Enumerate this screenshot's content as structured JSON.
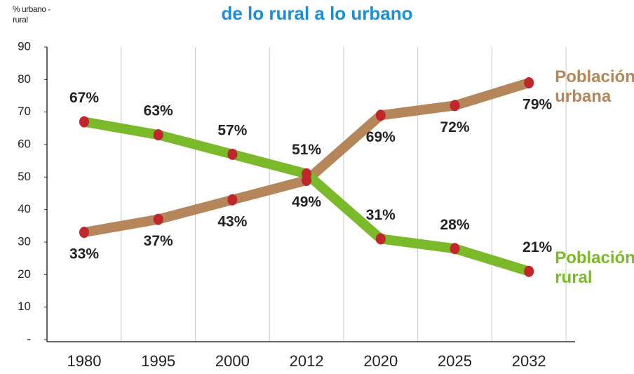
{
  "chart_data": {
    "type": "line",
    "title": "de lo rural a lo urbano",
    "y_label": "% urbano - rural",
    "categories": [
      "1980",
      "1995",
      "2000",
      "2012",
      "2020",
      "2025",
      "2032"
    ],
    "ylim": [
      0,
      90
    ],
    "yticks": [
      {
        "value": 0,
        "label": "-"
      },
      10,
      20,
      30,
      40,
      50,
      60,
      70,
      80,
      90
    ],
    "marker_color": "#c0272d",
    "series": [
      {
        "name": "Población urbana",
        "color": "#b5865a",
        "values": [
          33,
          37,
          43,
          49,
          69,
          72,
          79
        ],
        "value_labels": [
          "33%",
          "37%",
          "43%",
          "49%",
          "69%",
          "72%",
          "79%"
        ]
      },
      {
        "name": "Población rural",
        "color": "#7ab929",
        "values": [
          67,
          63,
          57,
          51,
          31,
          28,
          21
        ],
        "value_labels": [
          "67%",
          "63%",
          "57%",
          "51%",
          "31%",
          "28%",
          "21%"
        ]
      }
    ]
  }
}
